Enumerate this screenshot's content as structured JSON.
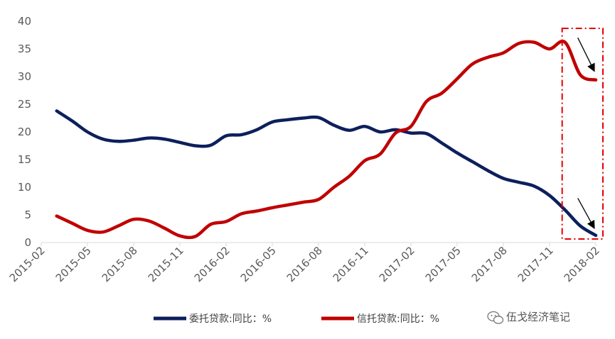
{
  "chart_data": {
    "type": "line",
    "x_ticks": [
      "2015-02",
      "2015-05",
      "2015-08",
      "2015-11",
      "2016-02",
      "2016-05",
      "2016-08",
      "2016-11",
      "2017-02",
      "2017-05",
      "2017-08",
      "2017-11",
      "2018-02"
    ],
    "y_ticks": [
      "40",
      "35",
      "30",
      "25",
      "20",
      "15",
      "10",
      "5",
      "0"
    ],
    "ylim": [
      0,
      40
    ],
    "xlim": [
      "2015-02",
      "2018-02"
    ],
    "grid": false,
    "legend_position": "bottom",
    "series": [
      {
        "name": "委托贷款:同比：%",
        "color": "#0d1f5c",
        "x": [
          "2015-03",
          "2015-04",
          "2015-05",
          "2015-06",
          "2015-07",
          "2015-08",
          "2015-09",
          "2015-10",
          "2015-11",
          "2015-12",
          "2016-01",
          "2016-02",
          "2016-03",
          "2016-04",
          "2016-05",
          "2016-06",
          "2016-07",
          "2016-08",
          "2016-09",
          "2016-10",
          "2016-11",
          "2016-12",
          "2017-01",
          "2017-02",
          "2017-03",
          "2017-04",
          "2017-05",
          "2017-06",
          "2017-07",
          "2017-08",
          "2017-09",
          "2017-10",
          "2017-11",
          "2017-12",
          "2018-01",
          "2018-02"
        ],
        "values": [
          23.8,
          22.0,
          20.0,
          18.7,
          18.3,
          18.5,
          18.9,
          18.7,
          18.1,
          17.5,
          17.6,
          19.3,
          19.5,
          20.4,
          21.8,
          22.2,
          22.5,
          22.6,
          21.2,
          20.3,
          21.0,
          20.0,
          20.4,
          19.8,
          19.7,
          18.0,
          16.2,
          14.6,
          13.0,
          11.6,
          10.9,
          10.2,
          8.5,
          5.9,
          3.0,
          1.3
        ]
      },
      {
        "name": "信托贷款:同比：%",
        "color": "#c00000",
        "x": [
          "2015-03",
          "2015-04",
          "2015-05",
          "2015-06",
          "2015-07",
          "2015-08",
          "2015-09",
          "2015-10",
          "2015-11",
          "2015-12",
          "2016-01",
          "2016-02",
          "2016-03",
          "2016-04",
          "2016-05",
          "2016-06",
          "2016-07",
          "2016-08",
          "2016-09",
          "2016-10",
          "2016-11",
          "2016-12",
          "2017-01",
          "2017-02",
          "2017-03",
          "2017-04",
          "2017-05",
          "2017-06",
          "2017-07",
          "2017-08",
          "2017-09",
          "2017-10",
          "2017-11",
          "2017-12",
          "2018-01",
          "2018-02"
        ],
        "values": [
          4.8,
          3.5,
          2.2,
          1.9,
          3.0,
          4.2,
          3.9,
          2.6,
          1.2,
          1.1,
          3.3,
          3.8,
          5.2,
          5.7,
          6.3,
          6.8,
          7.3,
          7.8,
          10.0,
          12.0,
          14.8,
          16.0,
          19.8,
          21.0,
          25.5,
          27.0,
          29.6,
          32.3,
          33.5,
          34.3,
          36.0,
          36.2,
          35.0,
          36.2,
          30.3,
          29.4
        ]
      }
    ],
    "annotations": [
      {
        "type": "dashed-box",
        "color": "#e00000",
        "x_range": [
          "2017-12",
          "2018-02"
        ],
        "y_range": [
          0,
          40
        ]
      },
      {
        "type": "arrow",
        "color": "#000000",
        "from": [
          "2017-12",
          36.0
        ],
        "to": [
          "2018-02",
          30.2
        ]
      },
      {
        "type": "arrow",
        "color": "#000000",
        "from": [
          "2017-12",
          7.0
        ],
        "to": [
          "2018-02",
          1.8
        ]
      }
    ]
  },
  "watermark": {
    "icon": "wechat-icon",
    "text": "伍戈经济笔记"
  }
}
